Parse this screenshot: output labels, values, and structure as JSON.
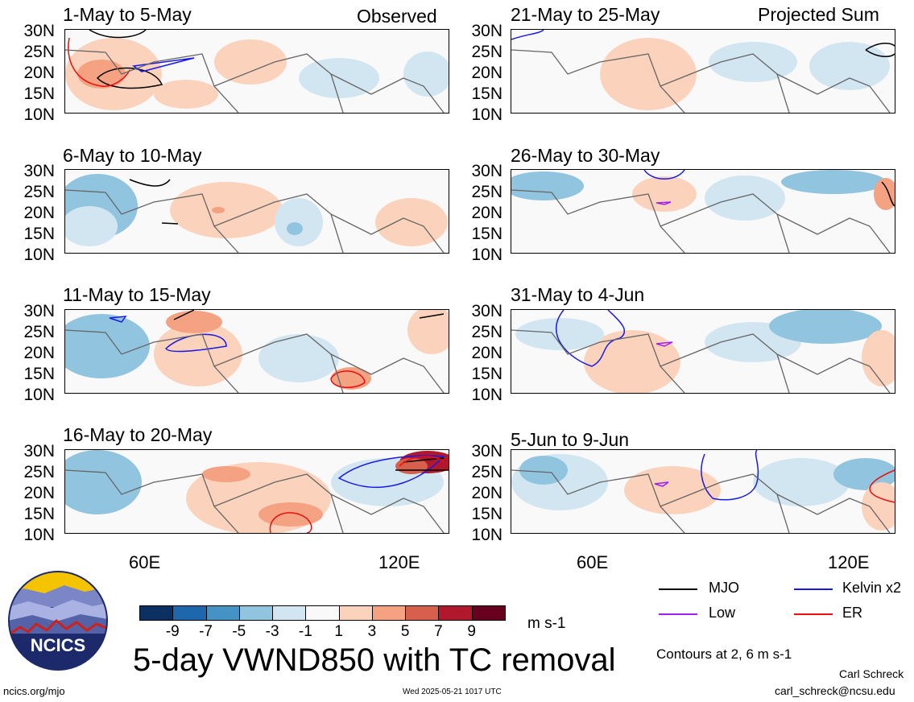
{
  "header": {
    "left_tag": "Observed",
    "right_tag": "Projected Sum"
  },
  "panels": {
    "left": [
      {
        "title": "1-May to 5-May"
      },
      {
        "title": "6-May to 10-May"
      },
      {
        "title": "11-May to 15-May"
      },
      {
        "title": "16-May to 20-May"
      }
    ],
    "right": [
      {
        "title": "21-May to 25-May"
      },
      {
        "title": "26-May to 30-May"
      },
      {
        "title": "31-May to 4-Jun"
      },
      {
        "title": "5-Jun to 9-Jun"
      }
    ]
  },
  "y_ticks": [
    "30N",
    "25N",
    "20N",
    "15N",
    "10N"
  ],
  "x_ticks": [
    "60E",
    "120E"
  ],
  "colorbar": {
    "colors": [
      "#0a3161",
      "#1f67ad",
      "#4592c5",
      "#91c4df",
      "#d2e6f2",
      "#f9f9f9",
      "#fbd3bc",
      "#f4a282",
      "#d6604d",
      "#b2182b",
      "#67001f"
    ],
    "labels": [
      "-9",
      "-7",
      "-5",
      "-3",
      "-1",
      "1",
      "3",
      "5",
      "7",
      "9"
    ],
    "units": "m s-1"
  },
  "legend": {
    "mjo": "MJO",
    "kelvin": "Kelvin x2",
    "low": "Low",
    "er": "ER",
    "mjo_color": "#000000",
    "kelvin_color": "#1a1ae6",
    "low_color": "#a020f0",
    "er_color": "#e81010"
  },
  "contours_note": "Contours at 2, 6 m s-1",
  "main_title": "5-day VWND850 with TC removal",
  "logo_text": "NCICS",
  "footer": {
    "url": "ncics.org/mjo",
    "timestamp": "Wed 2025-05-21 1017 UTC",
    "author": "Carl Schreck",
    "email": "carl_schreck@ncsu.edu"
  }
}
